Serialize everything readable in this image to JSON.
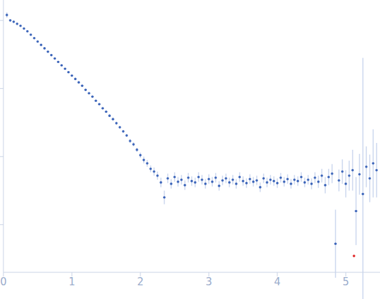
{
  "chart_data": {
    "type": "scatter",
    "xlim": [
      0,
      5.5
    ],
    "xticks": [
      0,
      1,
      2,
      3,
      4,
      5
    ],
    "ylim": [
      -0.7,
      3.3
    ],
    "yticks": [
      0,
      1,
      2,
      3
    ],
    "tick_labels": "x",
    "grid": false,
    "series": [
      {
        "color": "#3b64b9",
        "marker": "circle",
        "x": [
          0.05,
          0.1,
          0.15,
          0.2,
          0.25,
          0.3,
          0.35,
          0.4,
          0.45,
          0.5,
          0.55,
          0.6,
          0.65,
          0.7,
          0.75,
          0.8,
          0.85,
          0.9,
          0.95,
          1.0,
          1.05,
          1.1,
          1.15,
          1.2,
          1.25,
          1.3,
          1.35,
          1.4,
          1.45,
          1.5,
          1.55,
          1.6,
          1.65,
          1.7,
          1.75,
          1.8,
          1.85,
          1.9,
          1.95,
          2.0,
          2.05,
          2.1,
          2.15,
          2.2,
          2.25,
          2.3,
          2.35,
          2.4,
          2.45,
          2.5,
          2.55,
          2.6,
          2.65,
          2.7,
          2.75,
          2.8,
          2.85,
          2.9,
          2.95,
          3.0,
          3.05,
          3.1,
          3.15,
          3.2,
          3.25,
          3.3,
          3.35,
          3.4,
          3.45,
          3.5,
          3.55,
          3.6,
          3.65,
          3.7,
          3.75,
          3.8,
          3.85,
          3.9,
          3.95,
          4.0,
          4.05,
          4.1,
          4.15,
          4.2,
          4.25,
          4.3,
          4.35,
          4.4,
          4.45,
          4.5,
          4.55,
          4.6,
          4.65,
          4.7,
          4.75,
          4.8,
          4.85,
          4.9,
          4.95,
          5.0,
          5.05,
          5.1,
          5.15,
          5.2,
          5.25,
          5.3,
          5.35,
          5.4,
          5.45
        ],
        "values": [
          3.08,
          3.0,
          2.98,
          2.95,
          2.92,
          2.88,
          2.84,
          2.79,
          2.74,
          2.69,
          2.64,
          2.59,
          2.54,
          2.49,
          2.44,
          2.39,
          2.34,
          2.29,
          2.24,
          2.19,
          2.14,
          2.09,
          2.04,
          1.98,
          1.93,
          1.88,
          1.82,
          1.77,
          1.71,
          1.66,
          1.6,
          1.55,
          1.49,
          1.43,
          1.37,
          1.31,
          1.23,
          1.18,
          1.1,
          1.02,
          0.95,
          0.9,
          0.82,
          0.78,
          0.72,
          0.62,
          0.4,
          0.68,
          0.6,
          0.7,
          0.63,
          0.66,
          0.58,
          0.69,
          0.64,
          0.62,
          0.7,
          0.66,
          0.6,
          0.67,
          0.63,
          0.69,
          0.57,
          0.65,
          0.68,
          0.62,
          0.66,
          0.6,
          0.7,
          0.64,
          0.61,
          0.67,
          0.63,
          0.65,
          0.55,
          0.68,
          0.62,
          0.66,
          0.64,
          0.61,
          0.69,
          0.63,
          0.67,
          0.6,
          0.66,
          0.64,
          0.7,
          0.62,
          0.66,
          0.6,
          0.69,
          0.63,
          0.72,
          0.58,
          0.7,
          0.75,
          -0.28,
          0.65,
          0.78,
          0.6,
          0.72,
          0.8,
          0.2,
          0.74,
          0.45,
          0.85,
          0.68,
          0.9,
          0.8
        ],
        "error": [
          0.04,
          0.01,
          0.01,
          0.01,
          0.01,
          0.01,
          0.01,
          0.01,
          0.01,
          0.01,
          0.01,
          0.01,
          0.01,
          0.01,
          0.01,
          0.01,
          0.01,
          0.01,
          0.01,
          0.01,
          0.01,
          0.01,
          0.01,
          0.01,
          0.01,
          0.01,
          0.01,
          0.01,
          0.01,
          0.01,
          0.02,
          0.02,
          0.02,
          0.02,
          0.02,
          0.02,
          0.03,
          0.03,
          0.03,
          0.04,
          0.05,
          0.05,
          0.05,
          0.06,
          0.06,
          0.07,
          0.1,
          0.07,
          0.07,
          0.07,
          0.07,
          0.07,
          0.07,
          0.07,
          0.07,
          0.07,
          0.07,
          0.07,
          0.07,
          0.07,
          0.07,
          0.07,
          0.07,
          0.07,
          0.07,
          0.07,
          0.07,
          0.07,
          0.07,
          0.07,
          0.07,
          0.07,
          0.07,
          0.07,
          0.07,
          0.07,
          0.07,
          0.07,
          0.07,
          0.07,
          0.07,
          0.07,
          0.07,
          0.07,
          0.07,
          0.07,
          0.07,
          0.07,
          0.07,
          0.08,
          0.08,
          0.09,
          0.1,
          0.12,
          0.12,
          0.14,
          0.5,
          0.16,
          0.18,
          0.2,
          0.22,
          0.3,
          0.5,
          0.3,
          2.0,
          0.3,
          0.35,
          0.5,
          0.4
        ]
      },
      {
        "color": "#e02020",
        "marker": "circle",
        "x": [
          5.12
        ],
        "values": [
          -0.46
        ],
        "error": [
          0
        ]
      }
    ]
  }
}
